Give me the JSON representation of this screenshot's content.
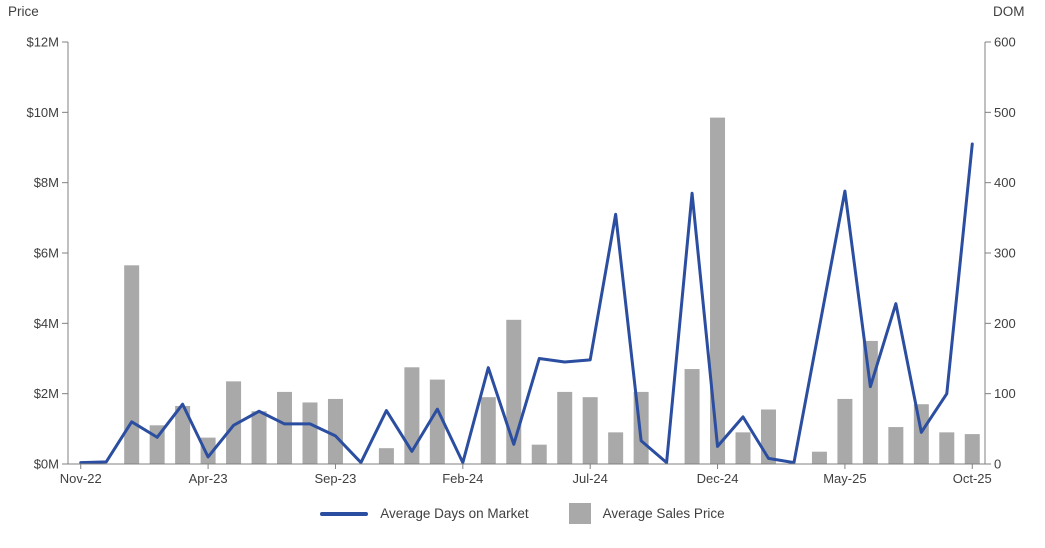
{
  "chart_data": {
    "type": "combo",
    "categories": [
      "Nov-22",
      "Dec-22",
      "Jan-23",
      "Feb-23",
      "Mar-23",
      "Apr-23",
      "May-23",
      "Jun-23",
      "Jul-23",
      "Aug-23",
      "Sep-23",
      "Oct-23",
      "Nov-23",
      "Dec-23",
      "Jan-24",
      "Feb-24",
      "Mar-24",
      "Apr-24",
      "May-24",
      "Jun-24",
      "Jul-24",
      "Aug-24",
      "Sep-24",
      "Oct-24",
      "Nov-24",
      "Dec-24",
      "Jan-25",
      "Feb-25",
      "Mar-25",
      "Apr-25",
      "May-25",
      "Jun-25",
      "Jul-25",
      "Aug-25",
      "Sep-25",
      "Oct-25"
    ],
    "x_tick_indices": [
      0,
      5,
      10,
      15,
      20,
      25,
      30,
      35
    ],
    "left_axis": {
      "title": "Price",
      "max": 12,
      "unit": "$M",
      "ticks": [
        {
          "value": 0,
          "label": "$0M"
        },
        {
          "value": 2,
          "label": "$2M"
        },
        {
          "value": 4,
          "label": "$4M"
        },
        {
          "value": 6,
          "label": "$6M"
        },
        {
          "value": 8,
          "label": "$8M"
        },
        {
          "value": 10,
          "label": "$10M"
        },
        {
          "value": 12,
          "label": "$12M"
        }
      ]
    },
    "right_axis": {
      "title": "DOM",
      "max": 600,
      "ticks": [
        {
          "value": 0,
          "label": "0"
        },
        {
          "value": 100,
          "label": "100"
        },
        {
          "value": 200,
          "label": "200"
        },
        {
          "value": 300,
          "label": "300"
        },
        {
          "value": 400,
          "label": "400"
        },
        {
          "value": 500,
          "label": "500"
        },
        {
          "value": 600,
          "label": "600"
        }
      ]
    },
    "series": [
      {
        "name": "Average Days on Market",
        "type": "line",
        "axis": "right",
        "values": [
          2,
          3,
          60,
          38,
          85,
          10,
          55,
          75,
          57,
          57,
          40,
          2,
          76,
          18,
          78,
          2,
          137,
          28,
          150,
          145,
          148,
          355,
          33,
          2,
          385,
          25,
          67,
          8,
          2,
          195,
          388,
          110,
          228,
          45,
          100,
          455
        ]
      },
      {
        "name": "Average Sales Price",
        "type": "bar",
        "axis": "left",
        "unit": "$M",
        "values": [
          0,
          0,
          5.65,
          1.1,
          1.65,
          0.75,
          2.35,
          1.5,
          2.05,
          1.75,
          1.85,
          0,
          0.45,
          2.75,
          2.4,
          0,
          1.9,
          4.1,
          0.55,
          2.05,
          1.9,
          0.9,
          2.05,
          0,
          2.7,
          9.85,
          0.9,
          1.55,
          0,
          0.35,
          1.85,
          3.5,
          1.05,
          1.7,
          0.9,
          0.85
        ]
      }
    ],
    "colors": {
      "line": "#2B4EA0",
      "bar": "#A9A9A9",
      "axis": "#808080",
      "text": "#404040"
    },
    "legend_position": "bottom",
    "grid": false
  }
}
